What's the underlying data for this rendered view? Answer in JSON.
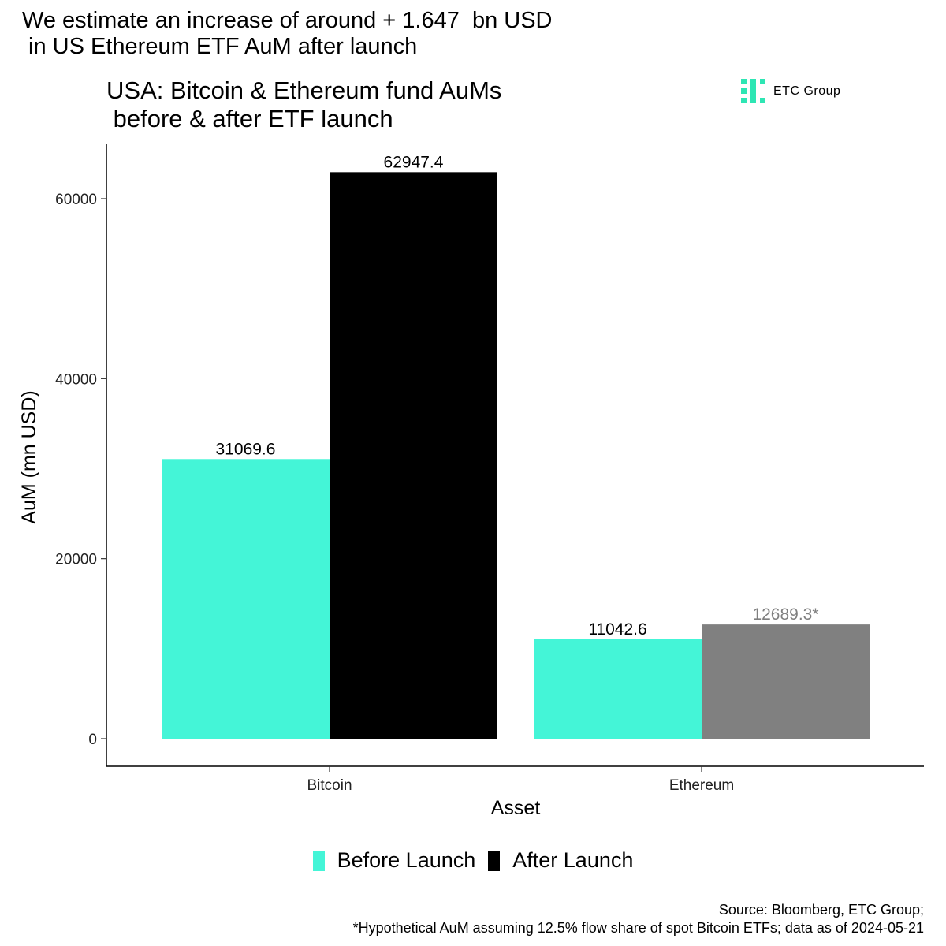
{
  "headline": "We estimate an increase of around + 1.647  bn USD\n in US Ethereum ETF AuM after launch",
  "logo": {
    "text": "ETC Group",
    "icon": "etc-group-logo-icon",
    "color": "#2ee6b4"
  },
  "colors": {
    "before": "#44f5d7",
    "after": "#000000",
    "hypothetical": "#808080",
    "hypothetical_label": "#7f7f7f"
  },
  "chart_data": {
    "type": "bar",
    "title": "USA: Bitcoin & Ethereum fund AuMs\n before & after ETF launch",
    "xlabel": "Asset",
    "ylabel": "AuM (mn USD)",
    "ylim": [
      0,
      65000
    ],
    "yticks": [
      0,
      20000,
      40000,
      60000
    ],
    "categories": [
      "Bitcoin",
      "Ethereum"
    ],
    "series": [
      {
        "name": "Before Launch",
        "values": [
          31069.6,
          11042.6
        ],
        "labels": [
          "31069.6",
          "11042.6"
        ]
      },
      {
        "name": "After Launch",
        "values": [
          62947.4,
          12689.3
        ],
        "labels": [
          "62947.4",
          "12689.3*"
        ],
        "hypothetical": [
          false,
          true
        ]
      }
    ],
    "grid": false,
    "legend": "bottom"
  },
  "footer": {
    "source": "Source: Bloomberg, ETC Group;",
    "note": "*Hypothetical AuM assuming 12.5% flow share of spot Bitcoin ETFs; data as of 2024-05-21"
  }
}
